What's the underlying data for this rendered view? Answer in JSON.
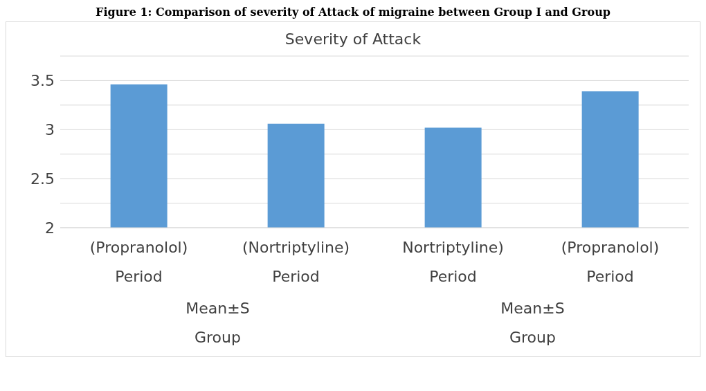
{
  "chart_data": {
    "type": "bar",
    "title": "Figure 1: Comparison of severity of Attack of migraine between Group I and Group",
    "subtitle": "Severity of Attack",
    "categories": [
      "(Propranolol) Period",
      "(Nortriptyline) Period",
      "Nortriptyline) Period",
      "(Propranolol) Period"
    ],
    "values": [
      3.46,
      3.06,
      3.02,
      3.39
    ],
    "color": "#5b9bd5",
    "ylim": [
      2,
      3.75
    ],
    "yticks": [
      2,
      {
        "value": 2.25,
        "label": null
      },
      2.5,
      {
        "value": 2.75,
        "label": null
      },
      3,
      {
        "value": 3.25,
        "label": null
      },
      3.5,
      {
        "value": 3.75,
        "label": null
      }
    ],
    "grid": "y",
    "annotations": [
      "Mean±S Group",
      "Mean±S Group"
    ]
  }
}
